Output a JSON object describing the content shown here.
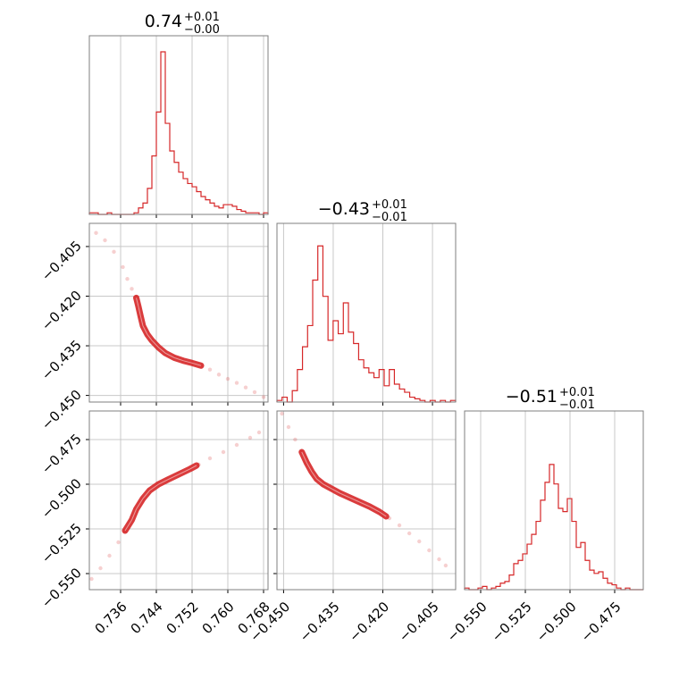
{
  "chart_data": {
    "type": "corner",
    "color": "#d62728",
    "parameters": [
      {
        "title_main": "0.74",
        "title_sup": "+0.01",
        "title_sub": "−0.00",
        "range": [
          0.729,
          0.769
        ],
        "ticks": [
          0.736,
          0.744,
          0.752,
          0.76,
          0.768
        ],
        "tick_labels": [
          "0.736",
          "0.744",
          "0.752",
          "0.760",
          "0.768"
        ],
        "hist": [
          0.01,
          0.01,
          0.0,
          0.0,
          0.01,
          0.0,
          0.0,
          0.0,
          0.0,
          0.0,
          0.01,
          0.04,
          0.07,
          0.16,
          0.36,
          0.63,
          1.0,
          0.56,
          0.39,
          0.32,
          0.26,
          0.22,
          0.19,
          0.17,
          0.14,
          0.11,
          0.09,
          0.07,
          0.05,
          0.04,
          0.06,
          0.06,
          0.05,
          0.03,
          0.02,
          0.01,
          0.01,
          0.01,
          0.0,
          0.01
        ]
      },
      {
        "title_main": "−0.43",
        "title_sup": "+0.01",
        "title_sub": "−0.01",
        "range": [
          -0.452,
          -0.398
        ],
        "ticks": [
          -0.45,
          -0.435,
          -0.42,
          -0.405
        ],
        "tick_labels": [
          "−0.450",
          "−0.435",
          "−0.420",
          "−0.405"
        ],
        "hist": [
          0.01,
          0.03,
          0.0,
          0.07,
          0.2,
          0.34,
          0.47,
          0.75,
          0.96,
          0.65,
          0.38,
          0.5,
          0.42,
          0.61,
          0.43,
          0.36,
          0.26,
          0.21,
          0.18,
          0.15,
          0.2,
          0.1,
          0.2,
          0.11,
          0.08,
          0.06,
          0.03,
          0.02,
          0.01,
          0.0,
          0.01,
          0.0,
          0.01,
          0.0,
          0.01
        ]
      },
      {
        "title_main": "−0.51",
        "title_sup": "+0.01",
        "title_sub": "−0.01",
        "range": [
          -0.559,
          -0.459
        ],
        "ticks": [
          -0.55,
          -0.525,
          -0.5,
          -0.475
        ],
        "tick_labels": [
          "−0.550",
          "−0.525",
          "−0.500",
          "−0.475"
        ],
        "hist": [
          0.01,
          0.0,
          0.0,
          0.01,
          0.02,
          0.0,
          0.01,
          0.02,
          0.04,
          0.05,
          0.09,
          0.16,
          0.18,
          0.22,
          0.28,
          0.34,
          0.42,
          0.55,
          0.66,
          0.77,
          0.65,
          0.5,
          0.48,
          0.56,
          0.42,
          0.26,
          0.29,
          0.18,
          0.12,
          0.1,
          0.11,
          0.07,
          0.04,
          0.03,
          0.01,
          0.0,
          0.01,
          0.0,
          0.0,
          0.0
        ]
      }
    ],
    "scatter": {
      "x_vs_y": {
        "points": [
          [
            0.7305,
            -0.4009
          ],
          [
            0.7325,
            -0.4031
          ],
          [
            0.7345,
            -0.4066
          ],
          [
            0.7365,
            -0.4112
          ],
          [
            0.7375,
            -0.4148
          ],
          [
            0.7385,
            -0.4178
          ],
          [
            0.7395,
            -0.4205
          ],
          [
            0.74,
            -0.4232
          ],
          [
            0.7405,
            -0.4262
          ],
          [
            0.741,
            -0.429
          ],
          [
            0.742,
            -0.4316
          ],
          [
            0.743,
            -0.4334
          ],
          [
            0.7445,
            -0.4355
          ],
          [
            0.746,
            -0.4372
          ],
          [
            0.748,
            -0.4386
          ],
          [
            0.75,
            -0.4395
          ],
          [
            0.752,
            -0.4402
          ],
          [
            0.754,
            -0.441
          ],
          [
            0.756,
            -0.4422
          ],
          [
            0.758,
            -0.4437
          ],
          [
            0.76,
            -0.445
          ],
          [
            0.762,
            -0.4462
          ],
          [
            0.764,
            -0.4476
          ],
          [
            0.766,
            -0.449
          ],
          [
            0.768,
            -0.4505
          ]
        ],
        "band_points": [
          [
            0.7395,
            -0.4205
          ],
          [
            0.74,
            -0.4232
          ],
          [
            0.7405,
            -0.4262
          ],
          [
            0.741,
            -0.429
          ],
          [
            0.742,
            -0.4316
          ],
          [
            0.743,
            -0.4334
          ],
          [
            0.7445,
            -0.4355
          ],
          [
            0.746,
            -0.4372
          ],
          [
            0.748,
            -0.4386
          ],
          [
            0.75,
            -0.4395
          ],
          [
            0.752,
            -0.4402
          ],
          [
            0.754,
            -0.441
          ]
        ]
      },
      "x_vs_z": {
        "points": [
          [
            0.7295,
            -0.553
          ],
          [
            0.7315,
            -0.547
          ],
          [
            0.7335,
            -0.54
          ],
          [
            0.7355,
            -0.5325
          ],
          [
            0.737,
            -0.526
          ],
          [
            0.7385,
            -0.52
          ],
          [
            0.7395,
            -0.514
          ],
          [
            0.741,
            -0.508
          ],
          [
            0.7425,
            -0.5035
          ],
          [
            0.7445,
            -0.5
          ],
          [
            0.7465,
            -0.4975
          ],
          [
            0.749,
            -0.4945
          ],
          [
            0.7515,
            -0.4915
          ],
          [
            0.7535,
            -0.489
          ],
          [
            0.756,
            -0.4855
          ],
          [
            0.759,
            -0.482
          ],
          [
            0.762,
            -0.478
          ],
          [
            0.765,
            -0.474
          ],
          [
            0.767,
            -0.471
          ]
        ],
        "band_points": [
          [
            0.737,
            -0.526
          ],
          [
            0.7385,
            -0.52
          ],
          [
            0.7395,
            -0.514
          ],
          [
            0.741,
            -0.508
          ],
          [
            0.7425,
            -0.5035
          ],
          [
            0.7445,
            -0.5
          ],
          [
            0.7465,
            -0.4975
          ],
          [
            0.749,
            -0.4945
          ],
          [
            0.7515,
            -0.4915
          ],
          [
            0.753,
            -0.4895
          ]
        ]
      },
      "y_vs_z": {
        "points": [
          [
            -0.4505,
            -0.4605
          ],
          [
            -0.4485,
            -0.468
          ],
          [
            -0.4465,
            -0.475
          ],
          [
            -0.4445,
            -0.482
          ],
          [
            -0.443,
            -0.488
          ],
          [
            -0.4415,
            -0.493
          ],
          [
            -0.44,
            -0.497
          ],
          [
            -0.438,
            -0.5
          ],
          [
            -0.4355,
            -0.5025
          ],
          [
            -0.433,
            -0.505
          ],
          [
            -0.43,
            -0.5075
          ],
          [
            -0.427,
            -0.51
          ],
          [
            -0.424,
            -0.5125
          ],
          [
            -0.421,
            -0.5155
          ],
          [
            -0.418,
            -0.519
          ],
          [
            -0.415,
            -0.523
          ],
          [
            -0.412,
            -0.5275
          ],
          [
            -0.409,
            -0.532
          ],
          [
            -0.406,
            -0.537
          ],
          [
            -0.403,
            -0.542
          ],
          [
            -0.401,
            -0.5455
          ]
        ],
        "band_points": [
          [
            -0.4445,
            -0.482
          ],
          [
            -0.443,
            -0.488
          ],
          [
            -0.4415,
            -0.493
          ],
          [
            -0.44,
            -0.497
          ],
          [
            -0.438,
            -0.5
          ],
          [
            -0.4355,
            -0.5025
          ],
          [
            -0.433,
            -0.505
          ],
          [
            -0.43,
            -0.5075
          ],
          [
            -0.427,
            -0.51
          ],
          [
            -0.424,
            -0.5125
          ],
          [
            -0.421,
            -0.5155
          ],
          [
            -0.419,
            -0.518
          ]
        ]
      }
    },
    "grid": true
  }
}
